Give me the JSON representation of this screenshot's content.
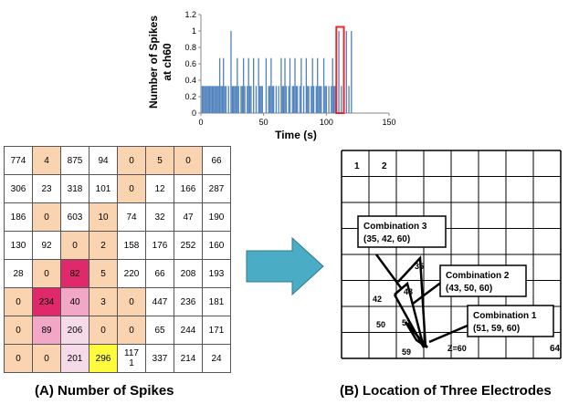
{
  "chart_data": {
    "type": "bar",
    "title": "",
    "xlabel": "Time (s)",
    "ylabel_lines": [
      "Number of Spikes",
      "at ch60"
    ],
    "xlim": [
      0,
      150
    ],
    "ylim": [
      0,
      1.2
    ],
    "xticks": [
      "0",
      "50",
      "100",
      "150"
    ],
    "yticks": [
      "0",
      "0.2",
      "0.4",
      "0.6",
      "0.8",
      "1",
      "1.2"
    ],
    "series_color": "#4f81bd",
    "highlight_color": "#e8262b",
    "highlight_x_range": [
      108,
      114
    ],
    "x": [
      1,
      2,
      3,
      4,
      5,
      6,
      7,
      8,
      9,
      10,
      11,
      12,
      13,
      14,
      15,
      16,
      17,
      18,
      19,
      20,
      22,
      24,
      25,
      26,
      27,
      28,
      29,
      30,
      32,
      33,
      34,
      35,
      37,
      38,
      39,
      40,
      42,
      44,
      46,
      47,
      48,
      49,
      52,
      54,
      55,
      56,
      57,
      58,
      60,
      62,
      64,
      65,
      66,
      67,
      68,
      70,
      71,
      73,
      74,
      75,
      76,
      77,
      79,
      80,
      82,
      84,
      85,
      86,
      88,
      89,
      90,
      92,
      93,
      94,
      95,
      96,
      98,
      99,
      100,
      102,
      104,
      105,
      106,
      107,
      108,
      110,
      112,
      114,
      116,
      118,
      120
    ],
    "values": [
      0.33,
      0.33,
      0.33,
      0.33,
      0.33,
      0.33,
      0.33,
      0.33,
      0.33,
      0.33,
      0.33,
      0.33,
      0.33,
      0.33,
      0.67,
      0.33,
      0.33,
      0.67,
      0.33,
      0.33,
      0.33,
      1.0,
      0.33,
      0.33,
      0.33,
      0.33,
      0.67,
      0.33,
      0.33,
      0.33,
      0.67,
      0.33,
      0.33,
      0.67,
      0.33,
      0.33,
      0.67,
      0.33,
      0.67,
      0.33,
      0.33,
      0.33,
      0.67,
      0.33,
      0.33,
      0.67,
      0.33,
      0.33,
      0.33,
      0.33,
      0.67,
      0.33,
      0.33,
      0.67,
      0.33,
      0.33,
      0.67,
      0.33,
      0.33,
      0.67,
      0.33,
      0.33,
      0.33,
      0.67,
      0.33,
      0.67,
      0.33,
      0.33,
      0.33,
      0.67,
      0.33,
      0.33,
      0.67,
      0.33,
      0.33,
      0.33,
      0.67,
      0.33,
      0.33,
      0.33,
      0.33,
      0.67,
      0.33,
      0.33,
      0.67,
      1.0,
      0.33,
      0.33,
      1.0,
      0.33,
      1.0
    ]
  },
  "spike_table": {
    "rows": [
      [
        {
          "v": "774",
          "c": ""
        },
        {
          "v": "4",
          "c": "#fad4b0"
        },
        {
          "v": "875",
          "c": ""
        },
        {
          "v": "94",
          "c": ""
        },
        {
          "v": "0",
          "c": "#fad4b0"
        },
        {
          "v": "5",
          "c": "#fad4b0"
        },
        {
          "v": "0",
          "c": "#fad4b0"
        },
        {
          "v": "66",
          "c": ""
        }
      ],
      [
        {
          "v": "306",
          "c": ""
        },
        {
          "v": "23",
          "c": ""
        },
        {
          "v": "318",
          "c": ""
        },
        {
          "v": "101",
          "c": ""
        },
        {
          "v": "0",
          "c": "#fad4b0"
        },
        {
          "v": "12",
          "c": ""
        },
        {
          "v": "166",
          "c": ""
        },
        {
          "v": "287",
          "c": ""
        }
      ],
      [
        {
          "v": "186",
          "c": ""
        },
        {
          "v": "0",
          "c": "#fad4b0"
        },
        {
          "v": "603",
          "c": ""
        },
        {
          "v": "10",
          "c": "#fad4b0"
        },
        {
          "v": "74",
          "c": ""
        },
        {
          "v": "32",
          "c": ""
        },
        {
          "v": "47",
          "c": ""
        },
        {
          "v": "190",
          "c": ""
        }
      ],
      [
        {
          "v": "130",
          "c": ""
        },
        {
          "v": "92",
          "c": ""
        },
        {
          "v": "0",
          "c": "#fad4b0"
        },
        {
          "v": "2",
          "c": "#fad4b0"
        },
        {
          "v": "158",
          "c": ""
        },
        {
          "v": "176",
          "c": ""
        },
        {
          "v": "252",
          "c": ""
        },
        {
          "v": "160",
          "c": ""
        }
      ],
      [
        {
          "v": "28",
          "c": ""
        },
        {
          "v": "0",
          "c": "#fad4b0"
        },
        {
          "v": "82",
          "c": "#e0296a"
        },
        {
          "v": "5",
          "c": "#fad4b0"
        },
        {
          "v": "220",
          "c": ""
        },
        {
          "v": "66",
          "c": ""
        },
        {
          "v": "208",
          "c": ""
        },
        {
          "v": "193",
          "c": ""
        }
      ],
      [
        {
          "v": "0",
          "c": "#fad4b0"
        },
        {
          "v": "234",
          "c": "#e0296a"
        },
        {
          "v": "40",
          "c": "#f2a7c6"
        },
        {
          "v": "3",
          "c": "#fad4b0"
        },
        {
          "v": "0",
          "c": "#fad4b0"
        },
        {
          "v": "447",
          "c": ""
        },
        {
          "v": "236",
          "c": ""
        },
        {
          "v": "181",
          "c": ""
        }
      ],
      [
        {
          "v": "0",
          "c": "#fad4b0"
        },
        {
          "v": "89",
          "c": "#f2a7c6"
        },
        {
          "v": "206",
          "c": "#f5dbe8"
        },
        {
          "v": "0",
          "c": "#fad4b0"
        },
        {
          "v": "0",
          "c": "#fad4b0"
        },
        {
          "v": "65",
          "c": ""
        },
        {
          "v": "244",
          "c": ""
        },
        {
          "v": "171",
          "c": ""
        }
      ],
      [
        {
          "v": "0",
          "c": "#fad4b0"
        },
        {
          "v": "0",
          "c": "#fad4b0"
        },
        {
          "v": "201",
          "c": "#f5dbe8"
        },
        {
          "v": "296",
          "c": "#fefb3c"
        },
        {
          "v": "117\n1",
          "c": ""
        },
        {
          "v": "337",
          "c": ""
        },
        {
          "v": "214",
          "c": ""
        },
        {
          "v": "24",
          "c": ""
        }
      ]
    ]
  },
  "arrow_color": "#4bacc6",
  "electrodes": {
    "corner_labels": [
      "1",
      "2"
    ],
    "last_label": "64",
    "z_label": "Z=60",
    "points": [
      "35",
      "42",
      "43",
      "50",
      "51",
      "59"
    ],
    "combos": [
      {
        "title": "Combination 3",
        "values": "(35, 42, 60)"
      },
      {
        "title": "Combination 2",
        "values": "(43, 50, 60)"
      },
      {
        "title": "Combination 1",
        "values": "(51, 59, 60)"
      }
    ]
  },
  "captions": {
    "a": "(A) Number of Spikes",
    "b": "(B) Location of Three Electrodes"
  }
}
